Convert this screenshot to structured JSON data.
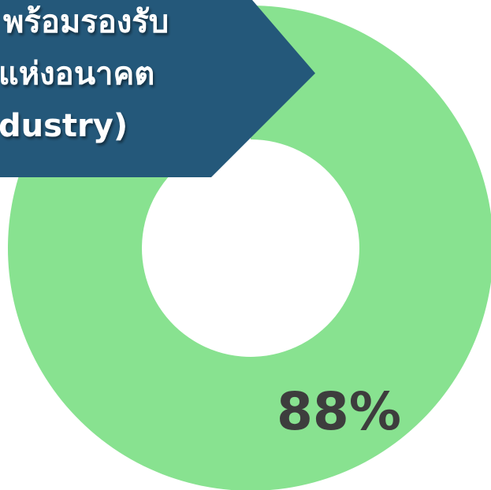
{
  "banner": {
    "lines": [
      "พร้อมรองรับ",
      "แห่งอนาคต",
      "dustry)"
    ]
  },
  "chart_data": {
    "type": "donut",
    "values": [
      88
    ],
    "value_labels": [
      "88%"
    ],
    "color": "#88e290"
  }
}
